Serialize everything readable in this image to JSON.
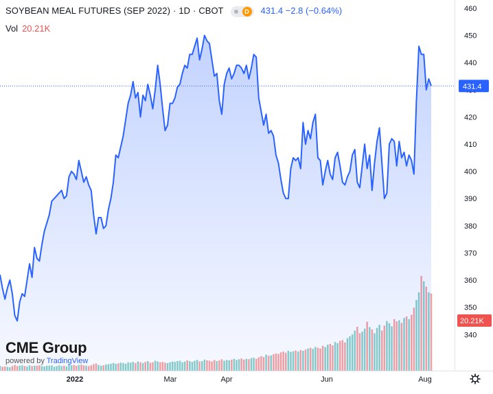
{
  "header": {
    "title": "SOYBEAN MEAL FUTURES (SEP 2022)",
    "interval": "1D",
    "exchange": "CBOT",
    "badge_letter": "D",
    "price": "431.4",
    "change": "−2.8",
    "change_pct": "(−0.64%)"
  },
  "volume_legend": {
    "label": "Vol",
    "value": "20.21K"
  },
  "watermark": {
    "brand": "CME Group",
    "powered_by": "powered by",
    "platform": "TradingView"
  },
  "colors": {
    "line": "#2962ff",
    "area": "#2962ff",
    "volume_up": "#26a69a",
    "volume_down": "#ef5350",
    "price_label_bg": "#2962ff",
    "volume_label_bg": "#ef5350"
  },
  "settings_icon": "gear-icon",
  "chart_data": {
    "type": "area",
    "ylim": [
      332,
      461
    ],
    "y_ticks": [
      340,
      350,
      360,
      370,
      380,
      390,
      400,
      410,
      420,
      430,
      440,
      450,
      460
    ],
    "x_tick_labels": [
      "2022",
      "Mar",
      "Apr",
      "Jun",
      "Aug"
    ],
    "last_price_label": "431.4",
    "last_volume_label": "20.21K",
    "series": [
      {
        "price": [
          362,
          357,
          353,
          357,
          360,
          355,
          347,
          345,
          352,
          355,
          354,
          360,
          366,
          361,
          372,
          368,
          367,
          373,
          378,
          381,
          384,
          389,
          390,
          391,
          392,
          393,
          390,
          391,
          398,
          400,
          399,
          397,
          404,
          400,
          396,
          398,
          395,
          393,
          384,
          377,
          383,
          383,
          379,
          380,
          386,
          390,
          396,
          406,
          405,
          409,
          413,
          419,
          425,
          428,
          433,
          427,
          429,
          420,
          428,
          426,
          432,
          428,
          423,
          430,
          439,
          432,
          423,
          415,
          417,
          425,
          425,
          427,
          431,
          432,
          436,
          439,
          438,
          443,
          443,
          446,
          449,
          441,
          445,
          450,
          448,
          447,
          441,
          435,
          436,
          426,
          421,
          432,
          436,
          438,
          434,
          436,
          439,
          439,
          438,
          436,
          439,
          434,
          438,
          443,
          442,
          427,
          422,
          417,
          421,
          414,
          415,
          413,
          406,
          403,
          397,
          392,
          390,
          390,
          401,
          405,
          404,
          405,
          401,
          418,
          410,
          415,
          412,
          418,
          421,
          405,
          404,
          395,
          400,
          404,
          399,
          397,
          405,
          407,
          402,
          396,
          395,
          398,
          400,
          406,
          408,
          396,
          394,
          402,
          410,
          401,
          406,
          393,
          403,
          411,
          416,
          403,
          390,
          392,
          410,
          412,
          411,
          402,
          411,
          405,
          407,
          402,
          406,
          404,
          399,
          426,
          446,
          443,
          443,
          430,
          434,
          431.4
        ],
        "volume": [
          1.2,
          1.0,
          1.1,
          1.0,
          0.9,
          1.2,
          1.5,
          1.2,
          1.3,
          1.4,
          1.2,
          1.1,
          1.4,
          1.2,
          1.3,
          1.3,
          1.4,
          1.2,
          1.1,
          1.3,
          1.3,
          1.4,
          1.0,
          1.2,
          1.4,
          1.2,
          1.3,
          1.1,
          1.6,
          1.4,
          1.5,
          1.3,
          1.5,
          1.6,
          1.4,
          1.3,
          1.2,
          1.4,
          1.7,
          1.9,
          1.5,
          1.3,
          1.4,
          1.6,
          1.7,
          1.8,
          2.0,
          1.8,
          1.9,
          2.1,
          2.0,
          1.8,
          2.2,
          2.1,
          2.3,
          2.0,
          2.4,
          2.2,
          2.0,
          2.3,
          2.5,
          2.1,
          2.2,
          2.6,
          2.4,
          2.2,
          2.3,
          2.1,
          2.0,
          2.2,
          2.4,
          2.3,
          2.5,
          2.6,
          2.2,
          2.4,
          2.7,
          2.5,
          2.3,
          2.6,
          2.8,
          2.4,
          2.5,
          2.9,
          2.7,
          2.6,
          2.4,
          2.8,
          2.5,
          2.7,
          3.0,
          2.6,
          2.8,
          2.7,
          2.9,
          3.1,
          2.8,
          3.0,
          3.2,
          2.9,
          3.1,
          3.0,
          3.3,
          3.4,
          3.1,
          3.5,
          3.8,
          3.6,
          4.2,
          3.9,
          4.0,
          4.3,
          4.5,
          4.4,
          4.8,
          5.0,
          4.7,
          5.2,
          4.9,
          5.1,
          5.3,
          5.0,
          5.4,
          5.2,
          5.5,
          5.8,
          6.0,
          5.7,
          6.2,
          6.0,
          5.8,
          6.5,
          6.2,
          6.8,
          7.0,
          6.6,
          7.5,
          7.2,
          7.8,
          8.0,
          7.4,
          8.5,
          9.0,
          9.5,
          10.5,
          11.5,
          9.8,
          10.2,
          11.0,
          12.8,
          11.4,
          10.8,
          9.8,
          11.2,
          12.0,
          10.5,
          11.8,
          13.0,
          12.4,
          11.6,
          13.5,
          12.9,
          13.2,
          12.5,
          13.8,
          14.2,
          13.5,
          14.6,
          16.5,
          18.5,
          20.5,
          24.8,
          23.4,
          22.0,
          20.5,
          20.21
        ]
      }
    ]
  }
}
